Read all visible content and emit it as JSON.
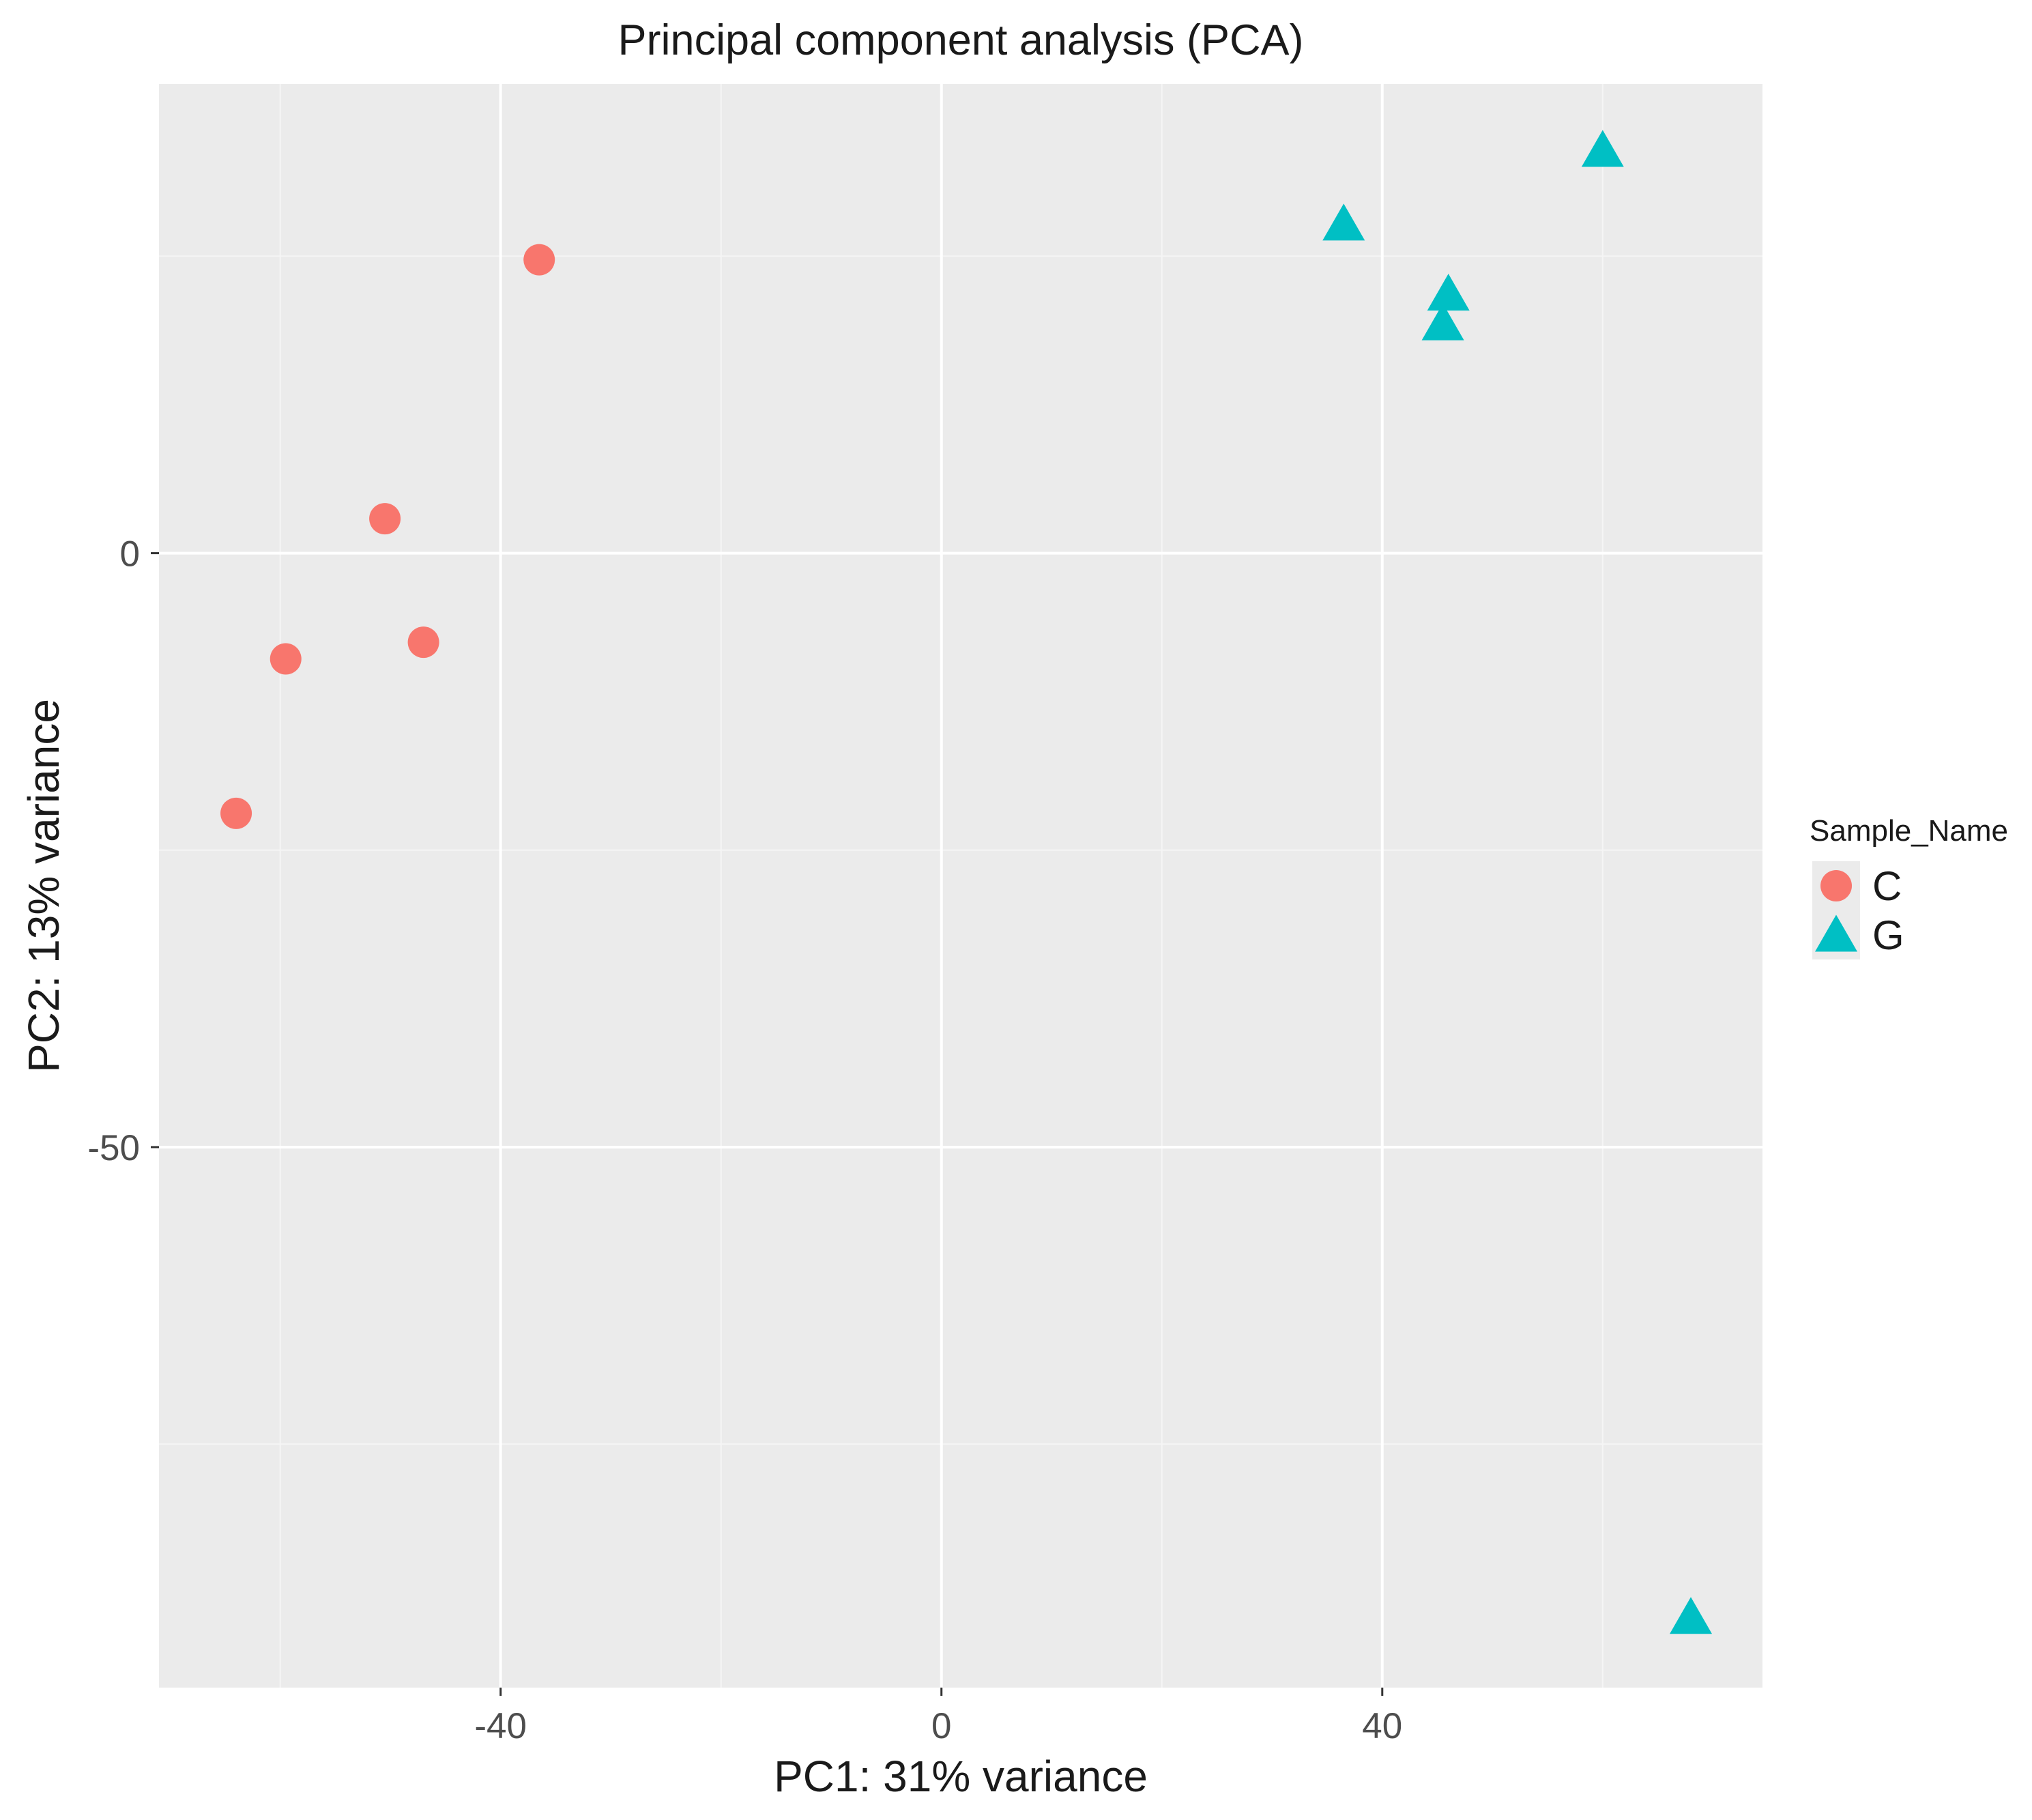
{
  "chart_data": {
    "type": "scatter",
    "title": "Principal component analysis (PCA)",
    "xlabel": "PC1: 31% variance",
    "ylabel": "PC2: 13% variance",
    "xlim": [
      -71,
      74.5
    ],
    "ylim": [
      -95.5,
      39.5
    ],
    "x_ticks": [
      {
        "value": -40,
        "label": "-40"
      },
      {
        "value": 0,
        "label": "0"
      },
      {
        "value": 40,
        "label": "40"
      }
    ],
    "y_ticks": [
      {
        "value": 0,
        "label": "0"
      },
      {
        "value": -50,
        "label": "-50"
      }
    ],
    "x_minor_grid": [
      -60,
      -20,
      20,
      60
    ],
    "y_minor_grid": [
      25,
      -25,
      -75
    ],
    "grid": true,
    "legend": {
      "title": "Sample_Name",
      "position": "right"
    },
    "series": [
      {
        "name": "C",
        "marker": "circle",
        "color": "#F8766D",
        "points": [
          {
            "x": -36.5,
            "y": 24.7
          },
          {
            "x": -50.5,
            "y": 2.9
          },
          {
            "x": -47,
            "y": -7.5
          },
          {
            "x": -59.5,
            "y": -8.9
          },
          {
            "x": -64,
            "y": -21.9
          }
        ]
      },
      {
        "name": "G",
        "marker": "triangle",
        "color": "#00BFC4",
        "points": [
          {
            "x": 60,
            "y": 33.7
          },
          {
            "x": 36.5,
            "y": 27.5
          },
          {
            "x": 46,
            "y": 21.6
          },
          {
            "x": 45.5,
            "y": 19.1
          },
          {
            "x": 68,
            "y": -89.8
          }
        ]
      }
    ],
    "colors": {
      "panel_background": "#EBEBEB",
      "grid_major": "#FFFFFF",
      "grid_minor": "#F5F5F5",
      "tick_mark": "#333333",
      "legend_key_background": "#EBEBEB"
    }
  }
}
